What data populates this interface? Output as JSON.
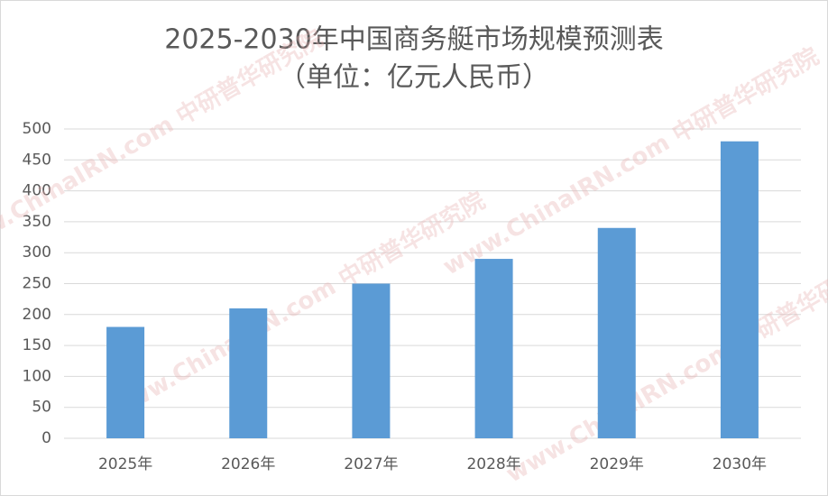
{
  "chart_data": {
    "type": "bar",
    "title": "2025-2030年中国商务艇市场规模预测表",
    "subtitle": "（单位：亿元人民币）",
    "watermark": "www.ChinaIRN.com 中研普华研究院",
    "categories": [
      "2025年",
      "2026年",
      "2027年",
      "2028年",
      "2029年",
      "2030年"
    ],
    "values": [
      180,
      210,
      250,
      290,
      340,
      480
    ],
    "color": "#5b9bd5",
    "ylim": [
      0,
      500
    ],
    "yticks": [
      0,
      50,
      100,
      150,
      200,
      250,
      300,
      350,
      400,
      450,
      500
    ],
    "grid": true
  }
}
